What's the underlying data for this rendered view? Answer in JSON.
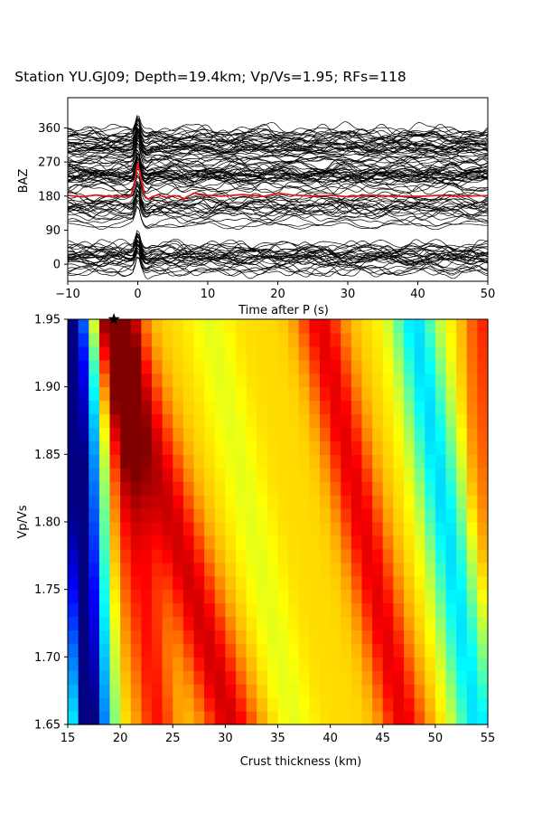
{
  "chart_data": [
    {
      "type": "line",
      "title": "Station YU.GJ09; Depth=19.4km; Vp/Vs=1.95; RFs=118",
      "xlabel": "Time after P (s)",
      "ylabel": "BAZ",
      "xlim": [
        -10,
        50
      ],
      "ylim": [
        -45,
        440
      ],
      "xticks": [
        "−10",
        "0",
        "10",
        "20",
        "30",
        "40",
        "50"
      ],
      "xtick_values": [
        -10,
        0,
        10,
        20,
        30,
        40,
        50
      ],
      "yticks": [
        "0",
        "90",
        "180",
        "270",
        "360"
      ],
      "ytick_values": [
        0,
        90,
        180,
        270,
        360
      ],
      "trace_count": 118,
      "trace_color": "#000000",
      "stack_color": "#e31a1c",
      "stack_baseline": 180,
      "stack_x": [
        -10,
        -8,
        -6,
        -4,
        -3,
        -2,
        -1,
        -0.5,
        0,
        0.5,
        1,
        1.5,
        2,
        3,
        4,
        5,
        6,
        6.5,
        7,
        7.5,
        8,
        10,
        12,
        15,
        18,
        20,
        22,
        25,
        28,
        30,
        33,
        36,
        40,
        43,
        46,
        50
      ],
      "stack_y": [
        182,
        178,
        183,
        179,
        183,
        177,
        180,
        210,
        268,
        225,
        180,
        172,
        178,
        184,
        176,
        181,
        180,
        170,
        178,
        182,
        188,
        182,
        180,
        184,
        179,
        188,
        183,
        180,
        182,
        178,
        183,
        180,
        179,
        182,
        180,
        181
      ]
    },
    {
      "type": "heatmap",
      "xlabel": "Crust thickness (km)",
      "ylabel": "Vp/Vs",
      "xlim": [
        15,
        55
      ],
      "ylim": [
        1.65,
        1.95
      ],
      "xticks": [
        "15",
        "20",
        "25",
        "30",
        "35",
        "40",
        "45",
        "50",
        "55"
      ],
      "xtick_values": [
        15,
        20,
        25,
        30,
        35,
        40,
        45,
        50,
        55
      ],
      "yticks": [
        "1.65",
        "1.70",
        "1.75",
        "1.80",
        "1.85",
        "1.90",
        "1.95"
      ],
      "ytick_values": [
        1.65,
        1.7,
        1.75,
        1.8,
        1.85,
        1.9,
        1.95
      ],
      "colormap": "jet",
      "x_cells": 40,
      "y_cells": 30,
      "best_fit": {
        "thickness_km": 19.4,
        "vpvs": 1.95,
        "marker": "star"
      }
    }
  ]
}
